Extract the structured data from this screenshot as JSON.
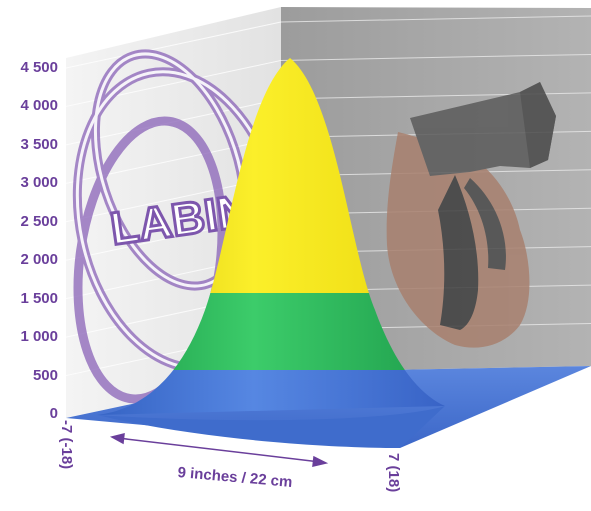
{
  "chart_data": {
    "type": "surface",
    "title": "",
    "y_ticks": [
      "4 500",
      "4 000",
      "3 500",
      "3 000",
      "2 500",
      "2 000",
      "1 500",
      "1 000",
      "500",
      "0"
    ],
    "y_values": [
      4500,
      4000,
      3500,
      3000,
      2500,
      2000,
      1500,
      1000,
      500,
      0
    ],
    "ylim": [
      0,
      4500
    ],
    "x_range_label_left": "-7 (-18)",
    "x_range_label_right": "7 (18)",
    "x_span_label": "9 inches / 22 cm",
    "peak_value": 4500,
    "color_bands": [
      {
        "from": 0,
        "to": 500,
        "color": "#3f6fd6"
      },
      {
        "from": 500,
        "to": 1500,
        "color": "#27b45a"
      },
      {
        "from": 1500,
        "to": 4500,
        "color": "#f2e21a"
      }
    ],
    "background_logo_text": "LABIN",
    "grid": true
  },
  "colors": {
    "axis_text": "#6a3f9b",
    "left_wall": "#ebebeb",
    "right_wall": "#a6a6a6",
    "floor": "#4a78d8",
    "logo": "#8a63b8"
  }
}
